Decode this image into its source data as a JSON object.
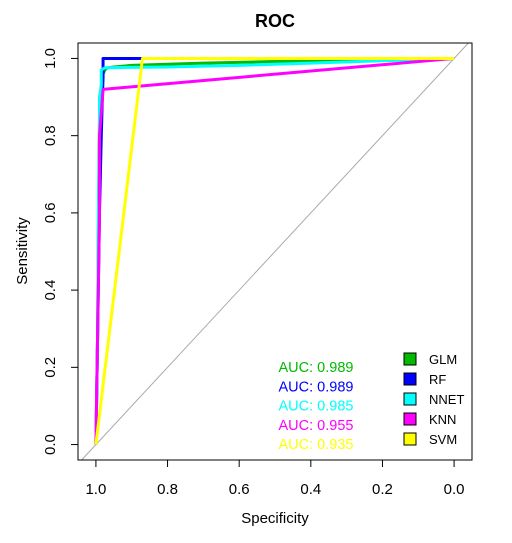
{
  "chart_data": {
    "type": "line",
    "title": "ROC",
    "xlabel": "Specificity",
    "ylabel": "Sensitivity",
    "xlim": [
      1.05,
      -0.05
    ],
    "ylim": [
      -0.04,
      1.04
    ],
    "x_reversed": true,
    "x_ticks": [
      1.0,
      0.8,
      0.6,
      0.4,
      0.2,
      0.0
    ],
    "x_tick_labels": [
      "1.0",
      "0.8",
      "0.6",
      "0.4",
      "0.2",
      "0.0"
    ],
    "y_ticks": [
      0.0,
      0.2,
      0.4,
      0.6,
      0.8,
      1.0
    ],
    "y_tick_labels": [
      "0.0",
      "0.2",
      "0.4",
      "0.6",
      "0.8",
      "1.0"
    ],
    "diagonal": {
      "color": "#aaaaaa",
      "from": [
        1,
        0
      ],
      "to": [
        0,
        1
      ]
    },
    "series": [
      {
        "name": "GLM",
        "color": "#00bb00",
        "auc_label": "AUC: 0.989",
        "x": [
          1.0,
          0.995,
          0.993,
          0.99,
          0.985,
          0.98,
          0.975,
          0.97,
          0.95,
          0.9,
          0.7,
          0.5,
          0.3,
          0.1,
          0.0
        ],
        "y": [
          0.0,
          0.3,
          0.6,
          0.85,
          0.93,
          0.96,
          0.97,
          0.975,
          0.978,
          0.982,
          0.988,
          0.992,
          0.995,
          0.998,
          1.0
        ]
      },
      {
        "name": "RF",
        "color": "#0000ff",
        "auc_label": "AUC: 0.989",
        "x": [
          1.0,
          0.995,
          0.99,
          0.985,
          0.982,
          0.98,
          0.98,
          0.97,
          0.87
        ],
        "y": [
          0.0,
          0.3,
          0.6,
          0.8,
          0.9,
          0.95,
          1.0,
          1.0,
          1.0
        ]
      },
      {
        "name": "NNET",
        "color": "#00ffff",
        "auc_label": "AUC: 0.985",
        "x": [
          1.0,
          0.995,
          0.993,
          0.99,
          0.99,
          0.985,
          0.985,
          0.975,
          0.9,
          0.8,
          0.6,
          0.4,
          0.2,
          0.0
        ],
        "y": [
          0.0,
          0.3,
          0.6,
          0.78,
          0.9,
          0.93,
          0.97,
          0.976,
          0.977,
          0.978,
          0.982,
          0.988,
          0.994,
          1.0
        ]
      },
      {
        "name": "KNN",
        "color": "#ff00ff",
        "auc_label": "AUC: 0.955",
        "x": [
          1.0,
          0.995,
          0.99,
          0.99,
          0.98,
          0.0
        ],
        "y": [
          0.0,
          0.3,
          0.6,
          0.8,
          0.92,
          1.0
        ]
      },
      {
        "name": "SVM",
        "color": "#ffff00",
        "auc_label": "AUC: 0.935",
        "x": [
          1.0,
          0.87,
          0.0
        ],
        "y": [
          0.0,
          1.0,
          1.0
        ]
      }
    ],
    "legend": {
      "position": "bottom-right",
      "entries": [
        "GLM",
        "RF",
        "NNET",
        "KNN",
        "SVM"
      ]
    }
  }
}
